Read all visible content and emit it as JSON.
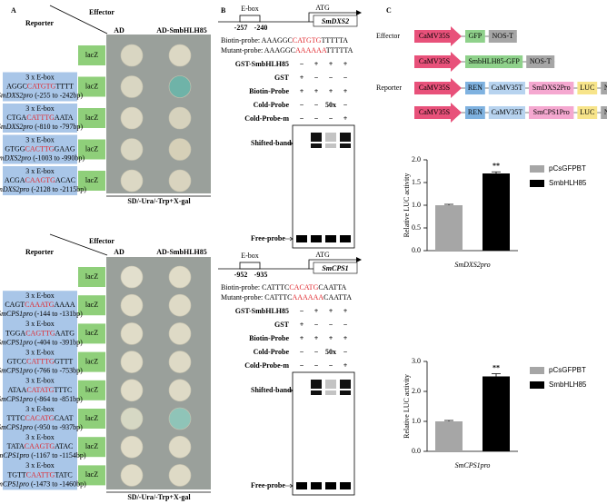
{
  "panel_a": {
    "label": "A",
    "sections": [
      {
        "effector": "Effector",
        "reporter": "Reporter",
        "columns": [
          "AD",
          "AD-SmbHLH85"
        ],
        "medium": "SD/-Ura/-Trp+X-gal",
        "rows": [
          {
            "reporter_box": "lacZ",
            "colonies": [
              "#d9d6c2",
              "#dcd8c4"
            ]
          },
          {
            "reporter_box": "lacZ",
            "colonies": [
              "#d9d6c2",
              "#6fb3a8"
            ],
            "construct": {
              "ebox": "3 x E-box",
              "seq": [
                "AGGC",
                "CATGTG",
                "TTTT"
              ],
              "promoter": "SmDXS2pro",
              "range": " (-255 to -242bp)"
            }
          },
          {
            "reporter_box": "lacZ",
            "colonies": [
              "#dcd8c4",
              "#d6d2bd"
            ],
            "construct": {
              "ebox": "3 x E-box",
              "seq": [
                "CTGA",
                "CATTTG",
                "AATA"
              ],
              "promoter": "SmDXS2pro",
              "range": " (-810 to -797bp)"
            }
          },
          {
            "reporter_box": "lacZ",
            "colonies": [
              "#d9d6c2",
              "#d6d0b8"
            ],
            "construct": {
              "ebox": "3 x E-box",
              "seq": [
                "GTGG",
                "CACTTG",
                "GAAG"
              ],
              "promoter": "SmDXS2pro",
              "range": " (-1003 to -990bp)"
            }
          },
          {
            "reporter_box": "lacZ",
            "colonies": [
              "#dcd8c4",
              "#d9d4bf"
            ],
            "construct": {
              "ebox": "3 x E-box",
              "seq": [
                "ACGA",
                "CAAGTG",
                "ACAC"
              ],
              "promoter": "SmDXS2pro",
              "range": " (-2128 to -2115bp)"
            }
          }
        ]
      },
      {
        "effector": "Effector",
        "reporter": "Reporter",
        "columns": [
          "AD",
          "AD-SmbHLH85"
        ],
        "medium": "SD/-Ura/-Trp+X-gal",
        "rows": [
          {
            "reporter_box": "lacZ",
            "colonies": [
              "#e2dfcd",
              "#e0dcc8"
            ]
          },
          {
            "reporter_box": "lacZ",
            "colonies": [
              "#e0dcc8",
              "#dedac6"
            ],
            "construct": {
              "ebox": "3 x E-box",
              "seq": [
                "CAGT",
                "CAAATG",
                "AAAA"
              ],
              "promoter": "SmCPS1pro",
              "range": " (-144 to -131bp)"
            }
          },
          {
            "reporter_box": "lacZ",
            "colonies": [
              "#e0dcc8",
              "#dedac6"
            ],
            "construct": {
              "ebox": "3 x E-box",
              "seq": [
                "TGGA",
                "CAGTTG",
                "AATG"
              ],
              "promoter": "SmCPS1pro",
              "range": " (-404 to -391bp)"
            }
          },
          {
            "reporter_box": "lacZ",
            "colonies": [
              "#e0dcc8",
              "#dedac6"
            ],
            "construct": {
              "ebox": "3 x E-box",
              "seq": [
                "GTCC",
                "CATTTG",
                "GTTT"
              ],
              "promoter": "SmCPS1pro",
              "range": " (-766 to -753bp)"
            }
          },
          {
            "reporter_box": "lacZ",
            "colonies": [
              "#e0dcc8",
              "#dedac6"
            ],
            "construct": {
              "ebox": "3 x E-box",
              "seq": [
                "ATAA",
                "CATATG",
                "TTTC"
              ],
              "promoter": "SmCPS1pro",
              "range": " (-864 to -851bp)"
            }
          },
          {
            "reporter_box": "lacZ",
            "colonies": [
              "#d6d8c4",
              "#8fc4b8"
            ],
            "construct": {
              "ebox": "3 x E-box",
              "seq": [
                "TTTC",
                "CACATG",
                "CAAT"
              ],
              "promoter": "SmCPS1pro",
              "range": " (-950 to -937bp)"
            }
          },
          {
            "reporter_box": "lacZ",
            "colonies": [
              "#e0dcc8",
              "#dedac6"
            ],
            "construct": {
              "ebox": "3 x E-box",
              "seq": [
                "TATA",
                "CAAGTG",
                "ATAC"
              ],
              "promoter": "SmCPS1pro",
              "range": " (-1167 to -1154bp)"
            }
          },
          {
            "reporter_box": "lacZ",
            "colonies": [
              "#e0dcc8",
              "#dedac6"
            ],
            "construct": {
              "ebox": "3 x E-box",
              "seq": [
                "TGTT",
                "CAATTG",
                "TATC"
              ],
              "promoter": "SmCPS1pro",
              "range": " (-1473 to -1460bp)"
            }
          }
        ]
      }
    ]
  },
  "panel_b": {
    "label": "B",
    "sections": [
      {
        "gene": "SmDXS2",
        "ebox": "E-box",
        "atg": "ATG",
        "positions": [
          "-257",
          "-240"
        ],
        "probes": [
          {
            "label": "Biotin-probe: ",
            "seq": [
              "AAAGGC",
              "CATGTG",
              "TTTTTA"
            ]
          },
          {
            "label": "Mutant-probe: ",
            "seq": [
              "AAAGGC",
              "AAAAAA",
              "TTTTTA"
            ]
          }
        ],
        "table": [
          {
            "label": "GST-SmbHLH85",
            "values": [
              "−",
              "+",
              "+",
              "+"
            ]
          },
          {
            "label": "GST",
            "values": [
              "+",
              "−",
              "−",
              "−"
            ]
          },
          {
            "label": "Biotin-Probe",
            "values": [
              "+",
              "+",
              "+",
              "+"
            ]
          },
          {
            "label": "Cold-Probe",
            "values": [
              "−",
              "−",
              "50x",
              "−"
            ]
          },
          {
            "label": "Cold-Probe-m",
            "values": [
              "−",
              "−",
              "−",
              "+"
            ]
          }
        ],
        "bands": [
          "Shifted-band",
          "Free-probe"
        ]
      },
      {
        "gene": "SmCPS1",
        "ebox": "E-box",
        "atg": "ATG",
        "positions": [
          "-952",
          "-935"
        ],
        "probes": [
          {
            "label": "Biotin-probe: ",
            "seq": [
              "CATTTC",
              "CACATG",
              "CAATTA"
            ]
          },
          {
            "label": "Mutant-probe: ",
            "seq": [
              "CATTTC",
              "AAAAAA",
              "CAATTA"
            ]
          }
        ],
        "table": [
          {
            "label": "GST-SmbHLH85",
            "values": [
              "−",
              "+",
              "+",
              "+"
            ]
          },
          {
            "label": "GST",
            "values": [
              "+",
              "−",
              "−",
              "−"
            ]
          },
          {
            "label": "Biotin-Probe",
            "values": [
              "+",
              "+",
              "+",
              "+"
            ]
          },
          {
            "label": "Cold-Probe",
            "values": [
              "−",
              "−",
              "50x",
              "−"
            ]
          },
          {
            "label": "Cold-Probe-m",
            "values": [
              "−",
              "−",
              "−",
              "+"
            ]
          }
        ],
        "bands": [
          "Shifted-band",
          "Free-probe"
        ]
      }
    ]
  },
  "panel_c": {
    "label": "C",
    "groups": [
      {
        "label": "Effector",
        "rows": [
          [
            {
              "text": "CaMV35S",
              "color": "#e8517a"
            },
            {
              "text": "GFP",
              "color": "#8fd18b"
            },
            {
              "text": "NOS-T",
              "color": "#a6a6a6"
            }
          ],
          [
            {
              "text": "CaMV35S",
              "color": "#e8517a"
            },
            {
              "text": "SmbHLH85-GFP",
              "color": "#8fd18b"
            },
            {
              "text": "NOS-T",
              "color": "#a6a6a6"
            }
          ]
        ]
      },
      {
        "label": "Reporter",
        "rows": [
          [
            {
              "text": "CaMV35S",
              "color": "#e8517a"
            },
            {
              "text": "REN",
              "color": "#7fb2e0"
            },
            {
              "text": "CaMV35T",
              "color": "#b7d3ef"
            },
            {
              "text": "SmDXS2Pro",
              "color": "#f5a8d0"
            },
            {
              "text": "LUC",
              "color": "#f7e48a"
            },
            {
              "text": "NOS-T",
              "color": "#a6a6a6"
            }
          ],
          [
            {
              "text": "CaMV35S",
              "color": "#e8517a"
            },
            {
              "text": "REN",
              "color": "#7fb2e0"
            },
            {
              "text": "CaMV35T",
              "color": "#b7d3ef"
            },
            {
              "text": "SmCPS1Pro",
              "color": "#f5a8d0"
            },
            {
              "text": "LUC",
              "color": "#f7e48a"
            },
            {
              "text": "NOS-T",
              "color": "#a6a6a6"
            }
          ]
        ]
      }
    ]
  },
  "chart_data": [
    {
      "type": "bar",
      "categories": [
        "SmDXS2pro"
      ],
      "ylabel": "Relative LUC activity",
      "series": [
        {
          "name": "pCsGFPBT",
          "color": "#a6a6a6",
          "values": [
            1.0
          ],
          "errors": [
            0.02
          ]
        },
        {
          "name": "SmbHLH85",
          "color": "#000000",
          "values": [
            1.7
          ],
          "errors": [
            0.035
          ]
        }
      ],
      "annotations": [
        "**"
      ],
      "ylim": [
        0,
        2
      ],
      "yticks": [
        {
          "value": 0,
          "label": "0.0"
        },
        {
          "value": 0.5,
          "label": "0.5"
        },
        {
          "value": 1,
          "label": "1.0"
        },
        {
          "value": 1.5,
          "label": "1.5"
        },
        {
          "value": 2,
          "label": "2.0"
        }
      ]
    },
    {
      "type": "bar",
      "categories": [
        "SmCPS1pro"
      ],
      "ylabel": "Relative LUC activity",
      "series": [
        {
          "name": "pCsGFPBT",
          "color": "#a6a6a6",
          "values": [
            1.0
          ],
          "errors": [
            0.03
          ]
        },
        {
          "name": "SmbHLH85",
          "color": "#000000",
          "values": [
            2.5
          ],
          "errors": [
            0.09
          ]
        }
      ],
      "annotations": [
        "**"
      ],
      "ylim": [
        0,
        3
      ],
      "yticks": [
        {
          "value": 0,
          "label": "0.0"
        },
        {
          "value": 1,
          "label": "1.0"
        },
        {
          "value": 2,
          "label": "2.0"
        },
        {
          "value": 3,
          "label": "3.0"
        }
      ]
    }
  ]
}
